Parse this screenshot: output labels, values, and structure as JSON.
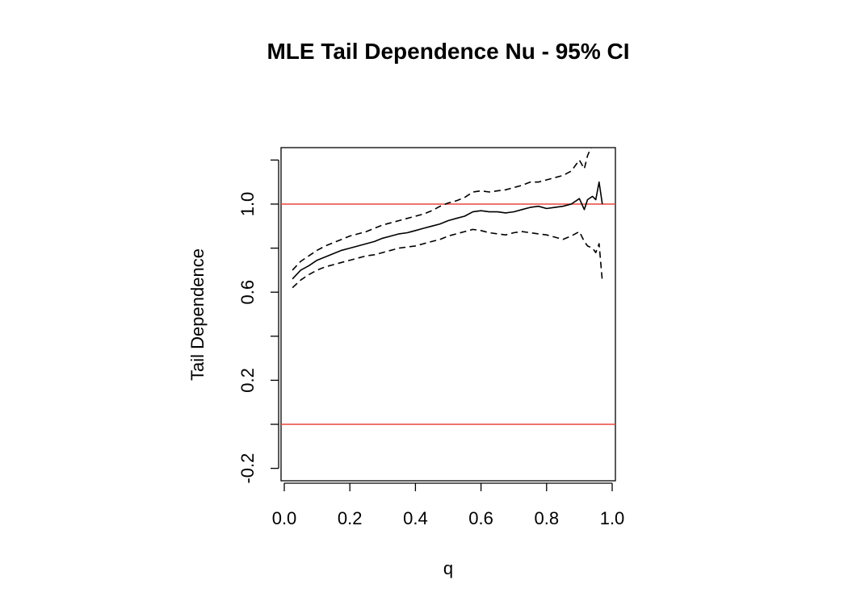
{
  "chart_data": {
    "type": "line",
    "title": "MLE Tail Dependence Nu - 95% CI",
    "xlabel": "q",
    "ylabel": "Tail Dependence",
    "xlim": [
      0.0,
      1.0
    ],
    "ylim": [
      -0.25,
      1.25
    ],
    "xticks": [
      "0.0",
      "0.2",
      "0.4",
      "0.6",
      "0.8",
      "1.0"
    ],
    "yticks_labeled": [
      "-0.2",
      "0.2",
      "0.6",
      "1.0"
    ],
    "yticks_all": [
      -0.2,
      0.0,
      0.2,
      0.4,
      0.6,
      0.8,
      1.0,
      1.2
    ],
    "hlines": [
      {
        "y": 1.0,
        "color": "#e8453c"
      },
      {
        "y": 0.0,
        "color": "#e8453c"
      }
    ],
    "grid": false,
    "legend": "none",
    "series": [
      {
        "style": "solid",
        "color": "#000000",
        "x": [
          0.025,
          0.05,
          0.075,
          0.1,
          0.125,
          0.15,
          0.175,
          0.2,
          0.225,
          0.25,
          0.275,
          0.3,
          0.325,
          0.35,
          0.375,
          0.4,
          0.425,
          0.45,
          0.475,
          0.5,
          0.525,
          0.55,
          0.575,
          0.6,
          0.625,
          0.65,
          0.675,
          0.7,
          0.725,
          0.75,
          0.775,
          0.8,
          0.825,
          0.85,
          0.875,
          0.9,
          0.915,
          0.925,
          0.94,
          0.95,
          0.96,
          0.97
        ],
        "y": [
          0.66,
          0.7,
          0.72,
          0.745,
          0.76,
          0.775,
          0.79,
          0.8,
          0.81,
          0.82,
          0.83,
          0.845,
          0.855,
          0.865,
          0.87,
          0.88,
          0.89,
          0.9,
          0.91,
          0.925,
          0.935,
          0.945,
          0.965,
          0.97,
          0.965,
          0.965,
          0.96,
          0.965,
          0.975,
          0.985,
          0.99,
          0.98,
          0.985,
          0.99,
          1.0,
          1.025,
          0.975,
          1.02,
          1.035,
          1.02,
          1.1,
          1.0
        ]
      },
      {
        "style": "dashed",
        "color": "#000000",
        "x": [
          0.025,
          0.05,
          0.075,
          0.1,
          0.125,
          0.15,
          0.175,
          0.2,
          0.225,
          0.25,
          0.275,
          0.3,
          0.325,
          0.35,
          0.375,
          0.4,
          0.425,
          0.45,
          0.475,
          0.5,
          0.525,
          0.55,
          0.575,
          0.6,
          0.625,
          0.65,
          0.675,
          0.7,
          0.725,
          0.75,
          0.775,
          0.8,
          0.825,
          0.85,
          0.875,
          0.9,
          0.915,
          0.925,
          0.94
        ],
        "y": [
          0.7,
          0.74,
          0.765,
          0.79,
          0.81,
          0.825,
          0.84,
          0.855,
          0.865,
          0.875,
          0.89,
          0.905,
          0.915,
          0.925,
          0.935,
          0.945,
          0.955,
          0.97,
          0.99,
          1.005,
          1.015,
          1.03,
          1.055,
          1.06,
          1.055,
          1.06,
          1.065,
          1.075,
          1.085,
          1.1,
          1.1,
          1.11,
          1.12,
          1.13,
          1.15,
          1.2,
          1.16,
          1.22,
          1.28
        ]
      },
      {
        "style": "dashed",
        "color": "#000000",
        "x": [
          0.025,
          0.05,
          0.075,
          0.1,
          0.125,
          0.15,
          0.175,
          0.2,
          0.225,
          0.25,
          0.275,
          0.3,
          0.325,
          0.35,
          0.375,
          0.4,
          0.425,
          0.45,
          0.475,
          0.5,
          0.525,
          0.55,
          0.575,
          0.6,
          0.625,
          0.65,
          0.675,
          0.7,
          0.725,
          0.75,
          0.775,
          0.8,
          0.825,
          0.85,
          0.875,
          0.9,
          0.915,
          0.925,
          0.94,
          0.95,
          0.96,
          0.97
        ],
        "y": [
          0.62,
          0.655,
          0.68,
          0.7,
          0.715,
          0.725,
          0.735,
          0.745,
          0.755,
          0.765,
          0.77,
          0.78,
          0.79,
          0.8,
          0.805,
          0.81,
          0.82,
          0.83,
          0.84,
          0.855,
          0.865,
          0.875,
          0.885,
          0.88,
          0.87,
          0.865,
          0.86,
          0.87,
          0.875,
          0.87,
          0.865,
          0.86,
          0.85,
          0.84,
          0.855,
          0.875,
          0.83,
          0.81,
          0.8,
          0.78,
          0.82,
          0.65
        ]
      }
    ]
  }
}
